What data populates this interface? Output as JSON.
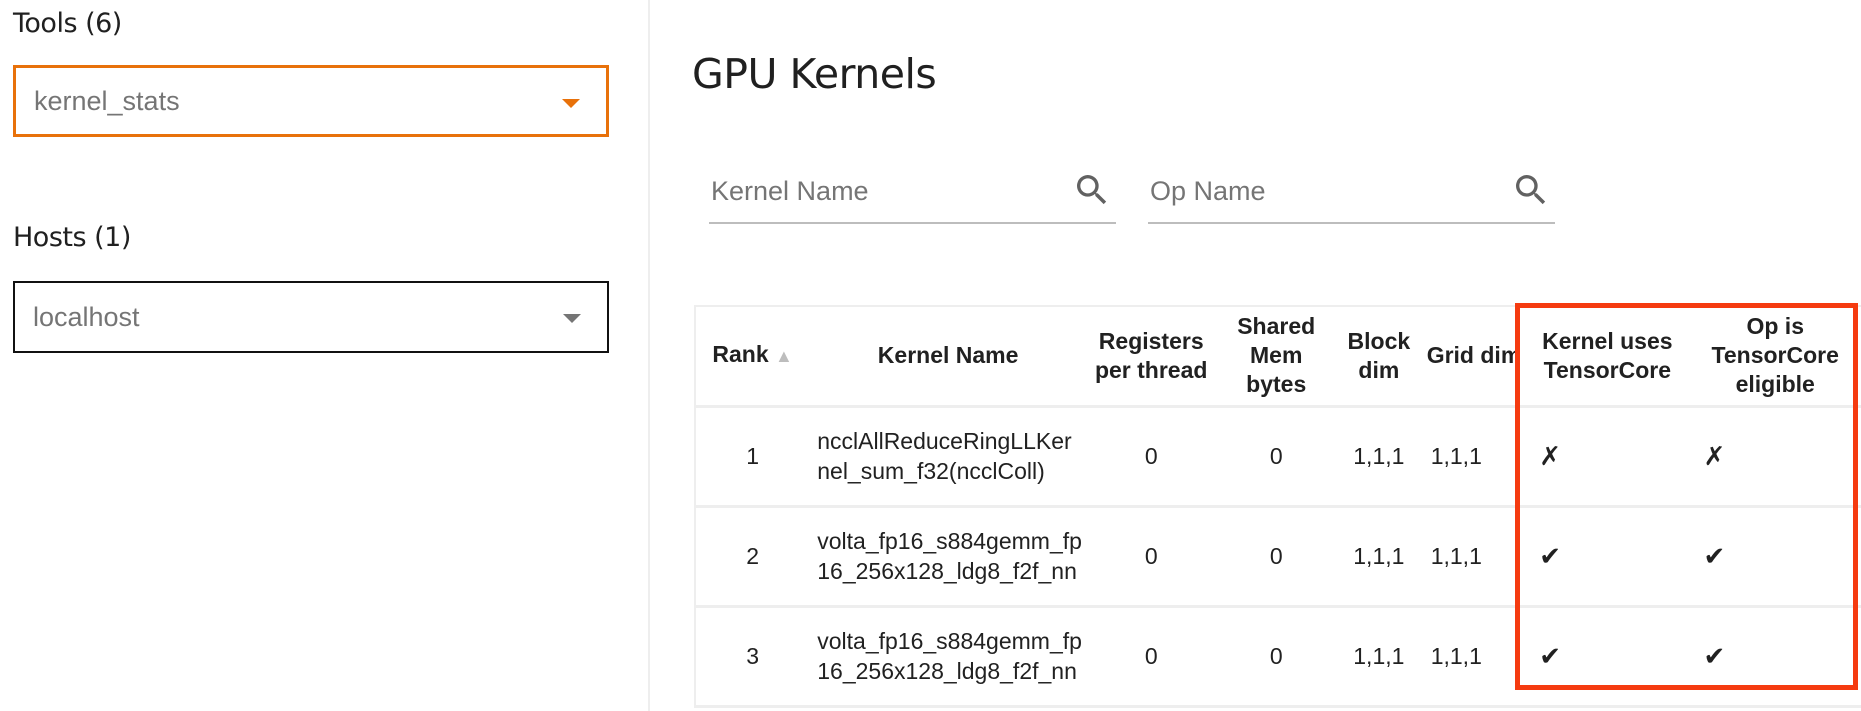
{
  "sidebar": {
    "tools_label": "Tools (6)",
    "tools_value": "kernel_stats",
    "hosts_label": "Hosts (1)",
    "hosts_value": "localhost"
  },
  "main": {
    "title": "GPU Kernels",
    "kernel_search_placeholder": "Kernel Name",
    "op_search_placeholder": "Op Name"
  },
  "table": {
    "headers": [
      "Rank",
      "Kernel Name",
      "Registers per thread",
      "Shared Mem bytes",
      "Block dim",
      "Grid dim",
      "Kernel uses TensorCore",
      "Op is TensorCore eligible"
    ],
    "sort_indicator": "▲",
    "rows": [
      [
        "1",
        "ncclAllReduceRingLLKernel_sum_f32(ncclColl)",
        "0",
        "0",
        "1,1,1",
        "1,1,1",
        "✗",
        "✗"
      ],
      [
        "2",
        "volta_fp16_s884gemm_fp16_256x128_ldg8_f2f_nn",
        "0",
        "0",
        "1,1,1",
        "1,1,1",
        "✔",
        "✔"
      ],
      [
        "3",
        "volta_fp16_s884gemm_fp16_256x128_ldg8_f2f_nn",
        "0",
        "0",
        "1,1,1",
        "1,1,1",
        "✔",
        "✔"
      ]
    ]
  },
  "colors": {
    "tools_border": "#e8710a",
    "highlight_box": "#f53b10"
  }
}
